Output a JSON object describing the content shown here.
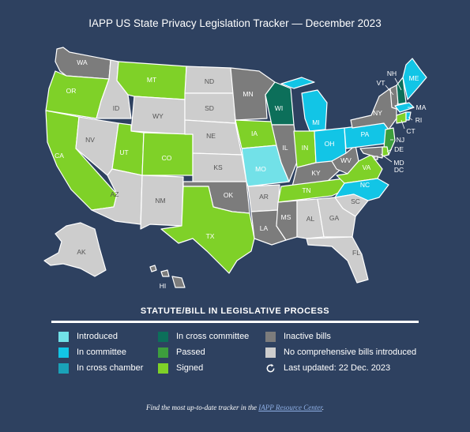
{
  "title": "IAPP US State Privacy Legislation Tracker — December 2023",
  "colors": {
    "background": "#2e4160",
    "introduced": "#72e1e8",
    "in_committee": "#12c5e6",
    "in_cross_chamber": "#1aa2b8",
    "in_cross_committee": "#0c6f5a",
    "passed": "#3d9e3d",
    "signed": "#7fd128",
    "inactive": "#7c7c7c",
    "none": "#cdcdcd"
  },
  "legend": {
    "title": "STATUTE/BILL IN LEGISLATIVE PROCESS",
    "introduced": "Introduced",
    "in_committee": "In committee",
    "in_cross_chamber": "In cross chamber",
    "in_cross_committee": "In cross committee",
    "passed": "Passed",
    "signed": "Signed",
    "inactive": "Inactive bills",
    "none": "No comprehensive bills introduced",
    "updated_icon": "refresh-icon",
    "updated": "Last updated: 22 Dec. 2023"
  },
  "states": {
    "WA": "inactive",
    "OR": "signed",
    "CA": "signed",
    "ID": "none",
    "NV": "none",
    "MT": "signed",
    "WY": "none",
    "UT": "signed",
    "CO": "signed",
    "AZ": "none",
    "NM": "none",
    "ND": "none",
    "SD": "none",
    "NE": "none",
    "KS": "none",
    "OK": "inactive",
    "TX": "signed",
    "MN": "inactive",
    "IA": "signed",
    "MO": "introduced",
    "AR": "none",
    "LA": "inactive",
    "WI": "in_cross_committee",
    "IL": "inactive",
    "MS": "inactive",
    "MI": "in_committee",
    "IN": "signed",
    "KY": "inactive",
    "TN": "signed",
    "AL": "none",
    "OH": "in_committee",
    "WV": "inactive",
    "GA": "none",
    "FL": "none",
    "SC": "none",
    "NC": "in_committee",
    "VA": "signed",
    "PA": "in_committee",
    "NY": "inactive",
    "VT": "inactive",
    "NH": "in_cross_committee",
    "ME": "in_committee",
    "MA": "in_committee",
    "RI": "in_committee",
    "CT": "signed",
    "NJ": "passed",
    "DE": "signed",
    "MD": "inactive",
    "DC": "inactive",
    "AK": "none",
    "HI": "inactive"
  },
  "footer": {
    "prefix": "Find the most up-to-date tracker in the",
    "link": "IAPP Resource Center",
    "suffix": "."
  }
}
